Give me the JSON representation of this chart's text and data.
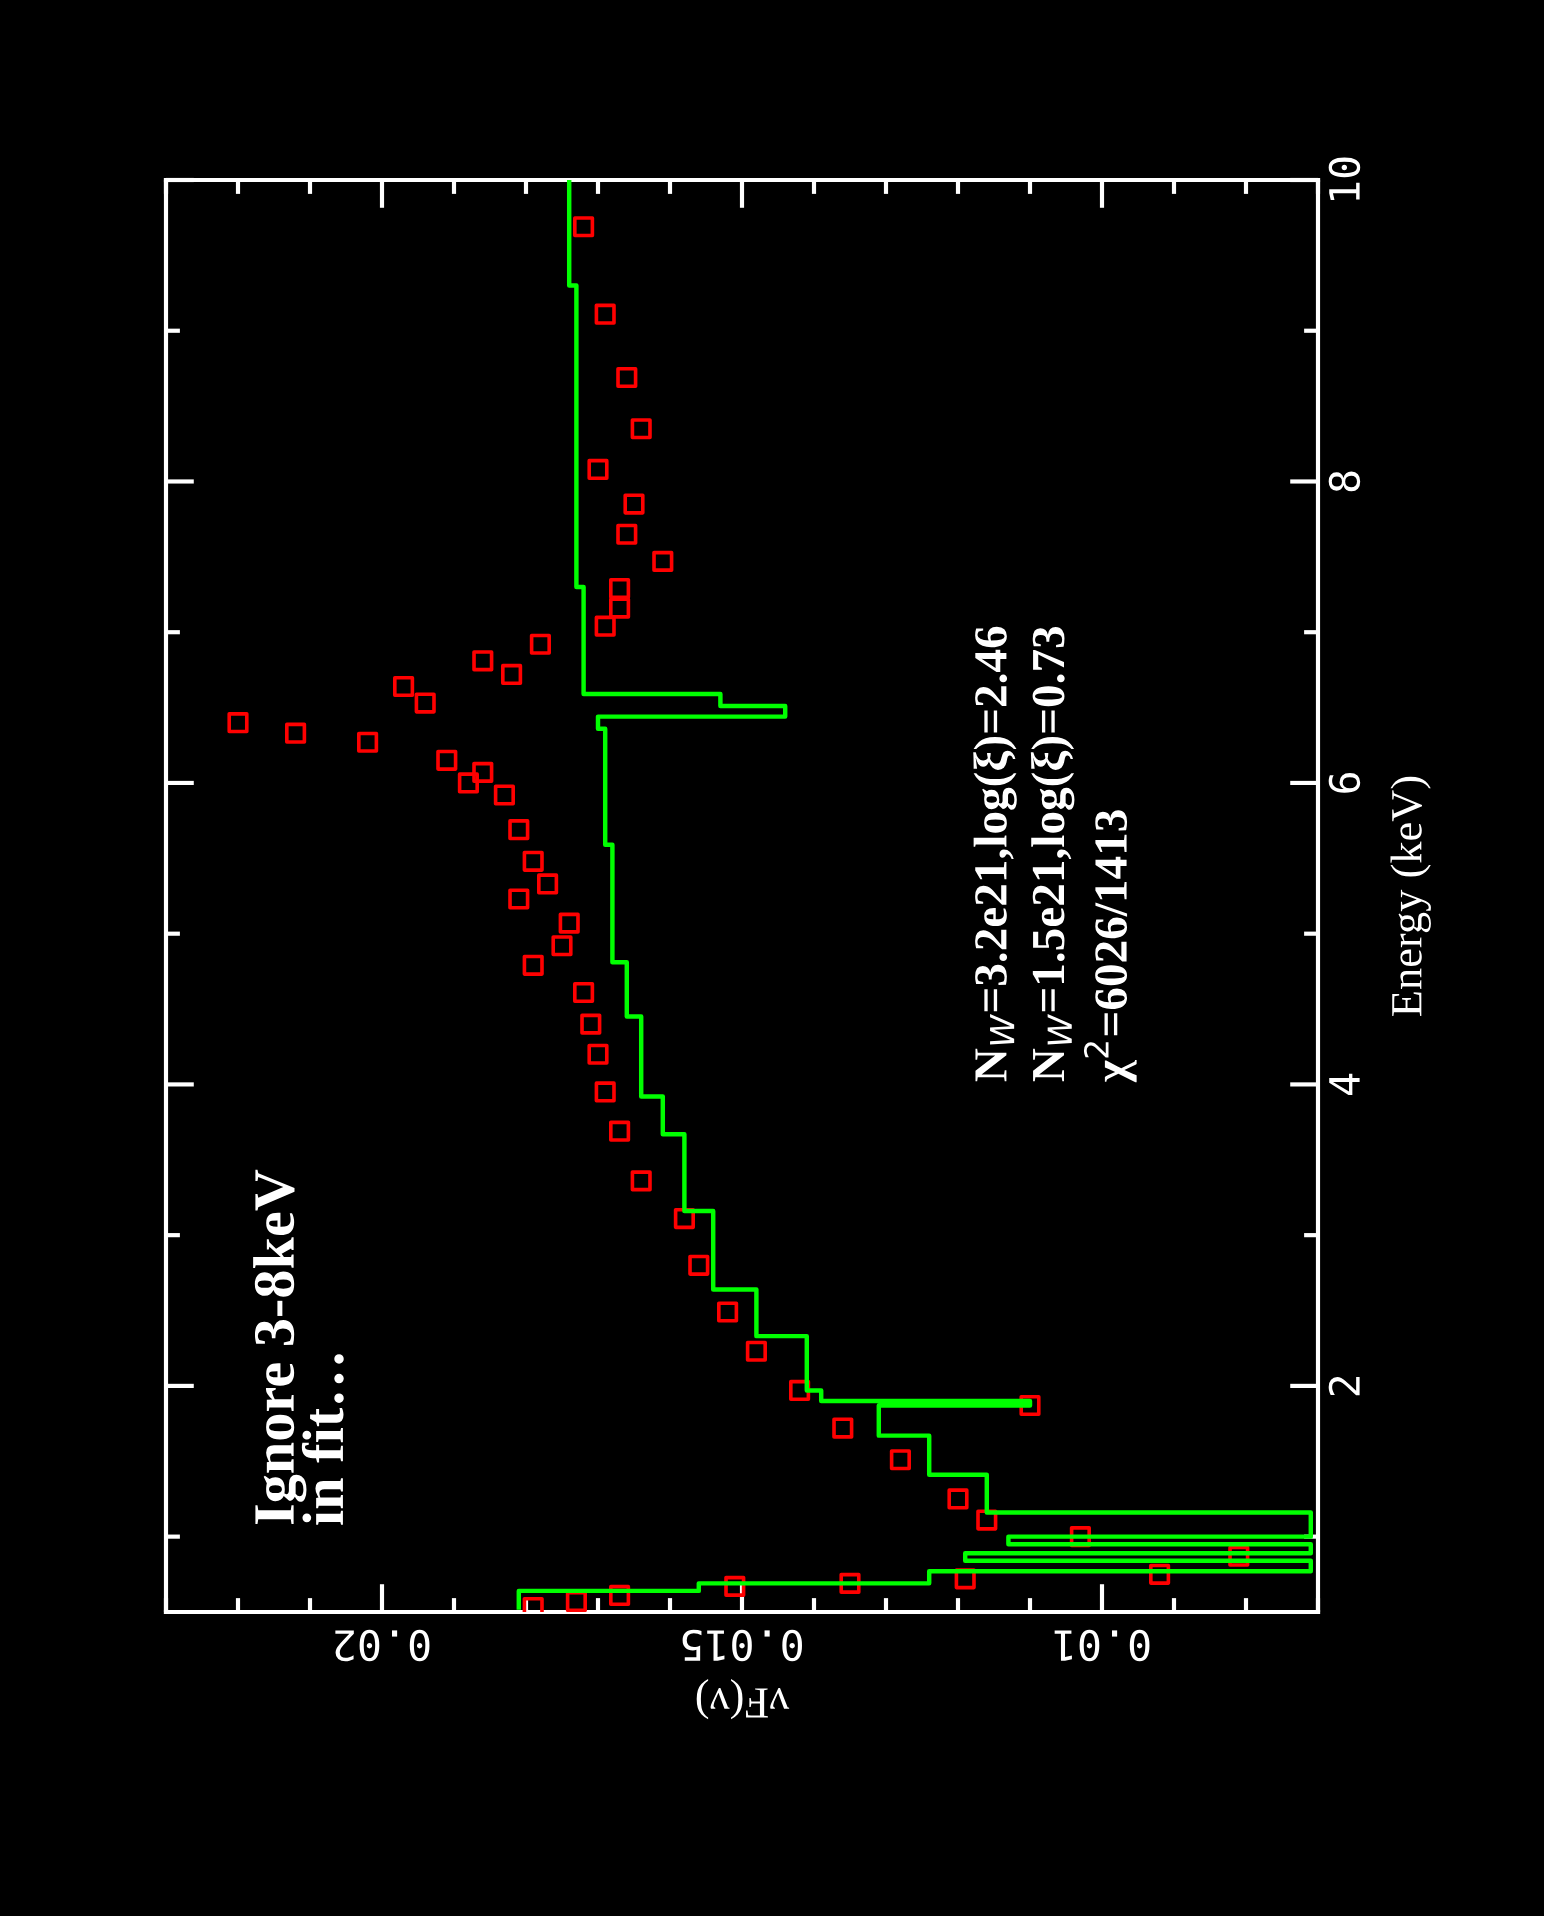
{
  "chart_data": {
    "type": "scatter",
    "xlabel": "νF(ν)",
    "ylabel": "Energy (keV)",
    "xlim": [
      0.023,
      0.007
    ],
    "ylim": [
      0.5,
      10
    ],
    "xticks": [
      {
        "value": 0.007,
        "label": null
      },
      {
        "value": 0.008,
        "label": null
      },
      {
        "value": 0.009,
        "label": null
      },
      0.01,
      {
        "value": 0.011,
        "label": null
      },
      {
        "value": 0.012,
        "label": null
      },
      {
        "value": 0.013,
        "label": null
      },
      {
        "value": 0.014,
        "label": null
      },
      0.015,
      {
        "value": 0.016,
        "label": null
      },
      {
        "value": 0.017,
        "label": null
      },
      {
        "value": 0.018,
        "label": null
      },
      {
        "value": 0.019,
        "label": null
      },
      0.02,
      {
        "value": 0.021,
        "label": null
      },
      {
        "value": 0.022,
        "label": null
      },
      {
        "value": 0.023,
        "label": null
      }
    ],
    "yticks": [
      {
        "value": 1,
        "label": null
      },
      2,
      {
        "value": 3,
        "label": null
      },
      4,
      {
        "value": 5,
        "label": null
      },
      6,
      {
        "value": 7,
        "label": null
      },
      8,
      {
        "value": 9,
        "label": null
      },
      10
    ],
    "grid": false,
    "legend": false,
    "marker": "square",
    "annotations": [
      "Ignore 3-8keV\nin fit…",
      "N$_{W}$=3.2e21,log(ξ)=2.46",
      "N$_{W}$=1.5e21,log(ξ)=0.73",
      "χ$^{2}$=6026/1413"
    ],
    "series": [
      {
        "color": "#ff0000",
        "x": [
          0.0172,
          0.0169,
          0.0166,
          0.0164,
          0.017,
          0.0165,
          0.0166,
          0.0161,
          0.0167,
          0.0167,
          0.0169,
          0.0178,
          0.0186,
          0.0182,
          0.0197,
          0.0194,
          0.022,
          0.0212,
          0.0202,
          0.0191,
          0.0186,
          0.0188,
          0.0183,
          0.0181,
          0.0179,
          0.0177,
          0.0181,
          0.0174,
          0.0175,
          0.0179,
          0.0172,
          0.0171,
          0.017,
          0.0169,
          0.0167,
          0.0164,
          0.0158,
          0.0156,
          0.0152,
          0.0148,
          0.0142,
          0.011,
          0.0136,
          0.0128,
          0.012,
          0.0116,
          0.0103,
          0.0081,
          0.0092,
          0.0119,
          0.0135,
          0.0151,
          0.0167,
          0.0173,
          0.0179
        ],
        "values": [
          9.69,
          9.11,
          8.69,
          8.35,
          8.08,
          7.85,
          7.65,
          7.47,
          7.29,
          7.16,
          7.04,
          6.92,
          6.81,
          6.72,
          6.64,
          6.53,
          6.4,
          6.33,
          6.27,
          6.15,
          6.07,
          6.0,
          5.92,
          5.69,
          5.48,
          5.33,
          5.23,
          5.07,
          4.92,
          4.79,
          4.61,
          4.4,
          4.2,
          3.95,
          3.69,
          3.36,
          3.11,
          2.8,
          2.49,
          2.23,
          1.97,
          1.87,
          1.72,
          1.51,
          1.25,
          1.11,
          1.0,
          0.87,
          0.75,
          0.72,
          0.69,
          0.67,
          0.61,
          0.57,
          0.53
        ]
      },
      {
        "type": "line",
        "marker": "none",
        "color": "#00ff00",
        "x": [
          0.0181,
          0.0181,
          0.0156,
          0.0156,
          0.0124,
          0.0124,
          0.0071,
          0.0071,
          0.0119,
          0.0119,
          0.0071,
          0.0071,
          0.0113,
          0.0113,
          0.0071,
          0.0071,
          0.0116,
          0.0116,
          0.0124,
          0.0124,
          0.0131,
          0.0131,
          0.011,
          0.011,
          0.0139,
          0.0139,
          0.0141,
          0.0141,
          0.0148,
          0.0148,
          0.0154,
          0.0154,
          0.0158,
          0.0158,
          0.0161,
          0.0161,
          0.0164,
          0.0164,
          0.0166,
          0.0166,
          0.0168,
          0.0168,
          0.0169,
          0.0169,
          0.017,
          0.017,
          0.0144,
          0.0144,
          0.0153,
          0.0153,
          0.0172,
          0.0172,
          0.0173,
          0.0173,
          0.0174,
          0.0174
        ],
        "values": [
          0.53,
          0.64,
          0.64,
          0.69,
          0.69,
          0.77,
          0.77,
          0.84,
          0.84,
          0.89,
          0.89,
          0.95,
          0.95,
          1.0,
          1.0,
          1.16,
          1.16,
          1.41,
          1.41,
          1.67,
          1.67,
          1.87,
          1.87,
          1.9,
          1.9,
          1.97,
          1.97,
          2.33,
          2.33,
          2.64,
          2.64,
          3.16,
          3.16,
          3.67,
          3.67,
          3.92,
          3.92,
          4.45,
          4.45,
          4.81,
          4.81,
          5.59,
          5.59,
          6.36,
          6.36,
          6.44,
          6.44,
          6.51,
          6.51,
          6.59,
          6.59,
          7.3,
          7.3,
          9.3,
          9.3,
          10.0
        ]
      }
    ]
  }
}
